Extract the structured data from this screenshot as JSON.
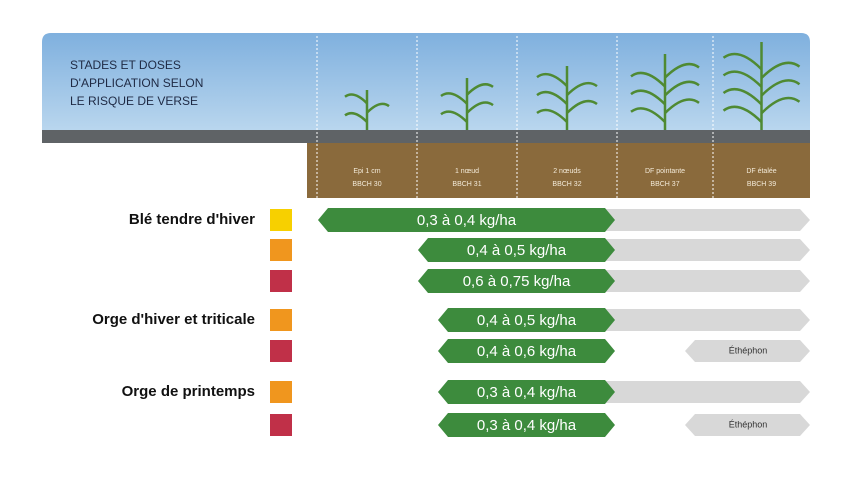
{
  "header": {
    "title_lines": [
      "STADES ET DOSES",
      "D'APPLICATION SELON",
      "LE RISQUE DE VERSE"
    ]
  },
  "stages": [
    {
      "label": "Epi 1 cm",
      "code": "BBCH 30"
    },
    {
      "label": "1 nœud",
      "code": "BBCH 31"
    },
    {
      "label": "2 nœuds",
      "code": "BBCH 32"
    },
    {
      "label": "DF pointante",
      "code": "BBCH 37"
    },
    {
      "label": "DF étalée",
      "code": "BBCH 39"
    }
  ],
  "crops": [
    {
      "name": "Blé tendre d'hiver",
      "rows": [
        {
          "color": "#f7d000",
          "dose": "0,3 à 0,4 kg/ha"
        },
        {
          "color": "#f0961e",
          "dose": "0,4 à 0,5 kg/ha"
        },
        {
          "color": "#c03048",
          "dose": "0,6 à 0,75 kg/ha"
        }
      ]
    },
    {
      "name": "Orge d'hiver et triticale",
      "rows": [
        {
          "color": "#f0961e",
          "dose": "0,4 à 0,5 kg/ha"
        },
        {
          "color": "#c03048",
          "dose": "0,4 à 0,6 kg/ha",
          "extra": "Éthéphon"
        }
      ]
    },
    {
      "name": "Orge de printemps",
      "rows": [
        {
          "color": "#f0961e",
          "dose": "0,3 à 0,4 kg/ha"
        },
        {
          "color": "#c03048",
          "dose": "0,3 à 0,4 kg/ha",
          "extra": "Éthéphon"
        }
      ]
    }
  ]
}
